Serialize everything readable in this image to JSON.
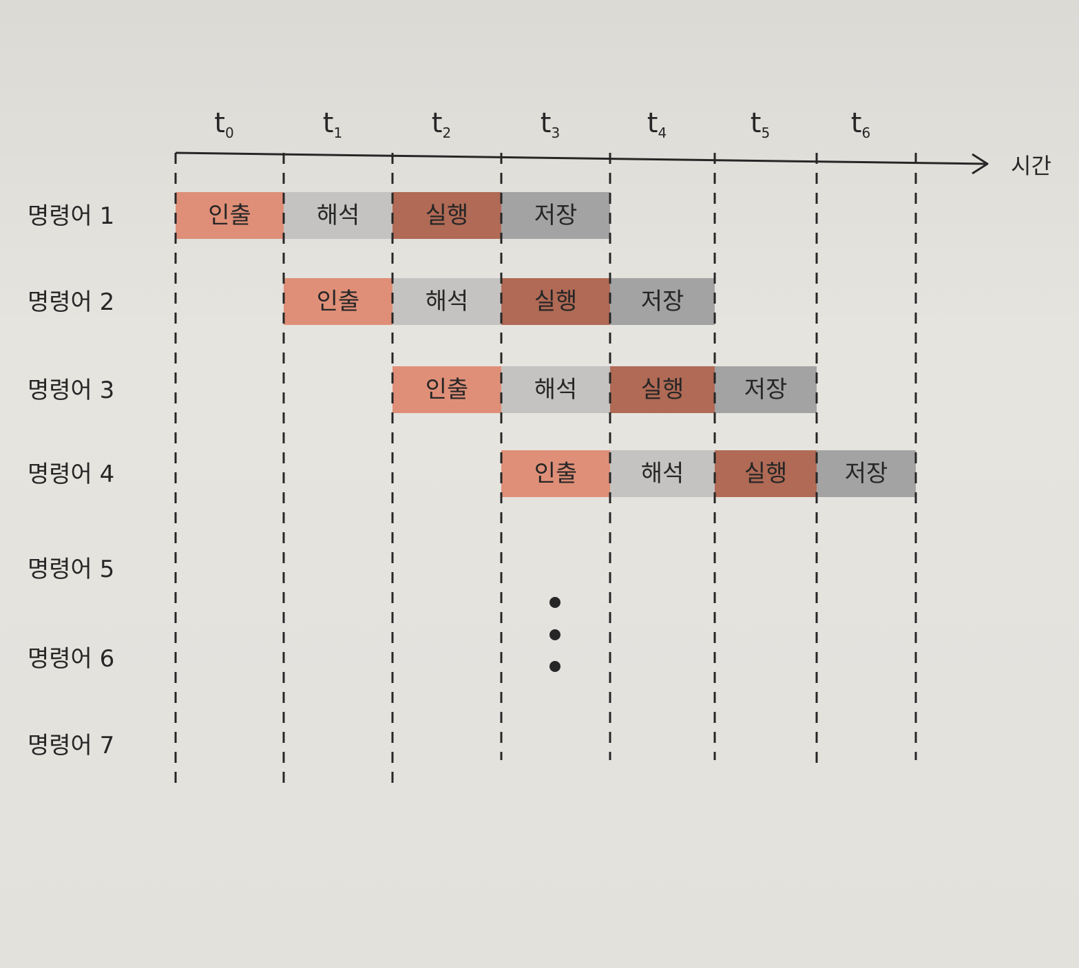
{
  "axis": {
    "time_label": "시간",
    "ticks": [
      {
        "main": "t",
        "sub": "0"
      },
      {
        "main": "t",
        "sub": "1"
      },
      {
        "main": "t",
        "sub": "2"
      },
      {
        "main": "t",
        "sub": "3"
      },
      {
        "main": "t",
        "sub": "4"
      },
      {
        "main": "t",
        "sub": "5"
      },
      {
        "main": "t",
        "sub": "6"
      }
    ]
  },
  "instructions": [
    {
      "label": "명령어 1",
      "start": 0,
      "stages": [
        "인출",
        "해석",
        "실행",
        "저장"
      ]
    },
    {
      "label": "명령어 2",
      "start": 1,
      "stages": [
        "인출",
        "해석",
        "실행",
        "저장"
      ]
    },
    {
      "label": "명령어 3",
      "start": 2,
      "stages": [
        "인출",
        "해석",
        "실행",
        "저장"
      ]
    },
    {
      "label": "명령어 4",
      "start": 3,
      "stages": [
        "인출",
        "해석",
        "실행",
        "저장"
      ]
    },
    {
      "label": "명령어 5",
      "start": null,
      "stages": []
    },
    {
      "label": "명령어 6",
      "start": null,
      "stages": []
    },
    {
      "label": "명령어 7",
      "start": null,
      "stages": []
    }
  ],
  "colors": {
    "fetch": "#df8f78",
    "decode": "#c4c3c1",
    "execute": "#b06a55",
    "store": "#a3a3a4",
    "ink": "#262626"
  }
}
